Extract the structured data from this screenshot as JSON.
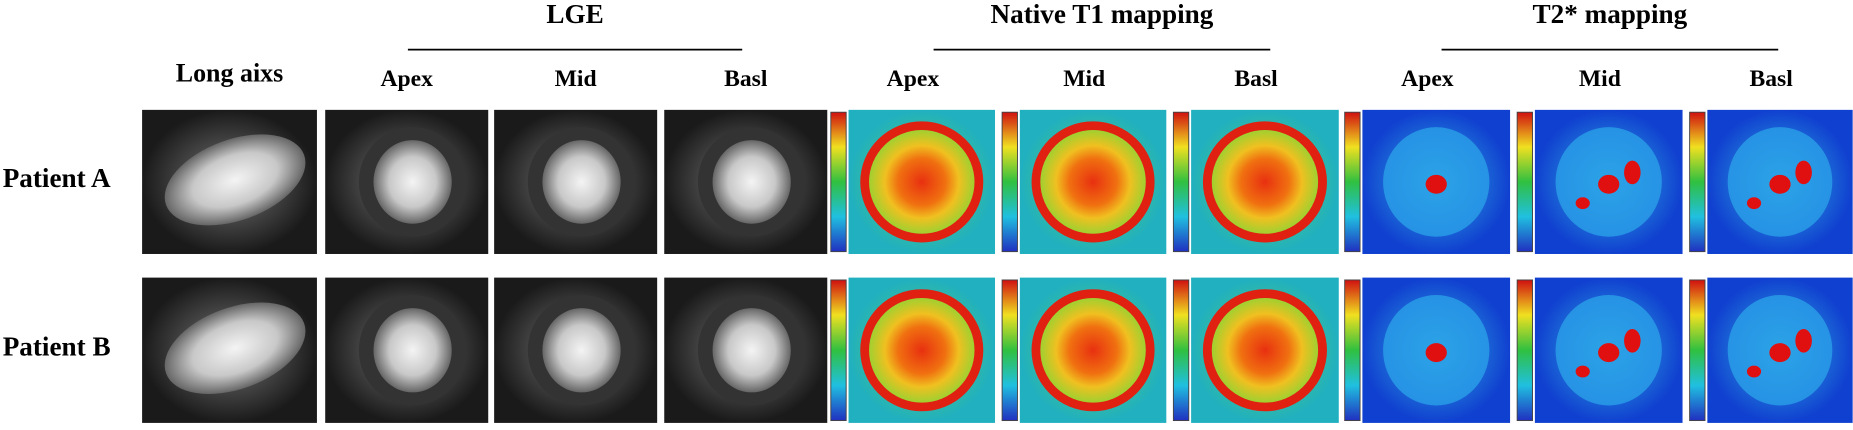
{
  "groups": [
    {
      "title": "LGE"
    },
    {
      "title": "Native T1 mapping"
    },
    {
      "title": "T2* mapping"
    }
  ],
  "columns": [
    "Long aixs",
    "Apex",
    "Mid",
    "Basl",
    "Apex",
    "Mid",
    "Basl",
    "Apex",
    "Mid",
    "Basl"
  ],
  "rows": [
    "Patient A",
    "Patient B"
  ]
}
